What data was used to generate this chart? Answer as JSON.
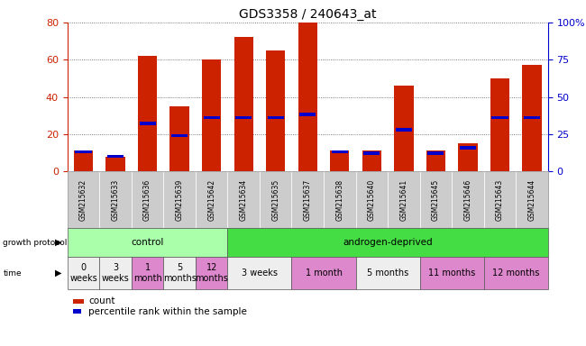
{
  "title": "GDS3358 / 240643_at",
  "samples": [
    "GSM215632",
    "GSM215633",
    "GSM215636",
    "GSM215639",
    "GSM215642",
    "GSM215634",
    "GSM215635",
    "GSM215637",
    "GSM215638",
    "GSM215640",
    "GSM215641",
    "GSM215645",
    "GSM215646",
    "GSM215643",
    "GSM215644"
  ],
  "count_values": [
    11,
    8,
    62,
    35,
    60,
    72,
    65,
    80,
    11,
    11,
    46,
    11,
    15,
    50,
    57
  ],
  "percentile_values": [
    13,
    10,
    32,
    24,
    36,
    36,
    36,
    38,
    13,
    12,
    28,
    12,
    16,
    36,
    36
  ],
  "left_ylim": [
    0,
    80
  ],
  "right_ylim": [
    0,
    100
  ],
  "left_yticks": [
    0,
    20,
    40,
    60,
    80
  ],
  "right_yticks": [
    0,
    25,
    50,
    75,
    100
  ],
  "right_yticklabels": [
    "0",
    "25",
    "50",
    "75",
    "100%"
  ],
  "bar_color": "#CC2200",
  "percentile_color": "#0000CC",
  "title_color": "#333333",
  "left_tick_color": "#CC2200",
  "right_tick_color": "#0000CC",
  "grid_color": "#555555",
  "sample_label_bg": "#CCCCCC",
  "protocol_groups": [
    {
      "label": "control",
      "start": 0,
      "end": 5,
      "color": "#AAFFAA"
    },
    {
      "label": "androgen-deprived",
      "start": 5,
      "end": 15,
      "color": "#44DD44"
    }
  ],
  "time_groups": [
    {
      "label": "0\nweeks",
      "start": 0,
      "end": 1,
      "color": "#EEEEEE"
    },
    {
      "label": "3\nweeks",
      "start": 1,
      "end": 2,
      "color": "#EEEEEE"
    },
    {
      "label": "1\nmonth",
      "start": 2,
      "end": 3,
      "color": "#DD88CC"
    },
    {
      "label": "5\nmonths",
      "start": 3,
      "end": 4,
      "color": "#EEEEEE"
    },
    {
      "label": "12\nmonths",
      "start": 4,
      "end": 5,
      "color": "#DD88CC"
    },
    {
      "label": "3 weeks",
      "start": 5,
      "end": 7,
      "color": "#EEEEEE"
    },
    {
      "label": "1 month",
      "start": 7,
      "end": 9,
      "color": "#DD88CC"
    },
    {
      "label": "5 months",
      "start": 9,
      "end": 11,
      "color": "#EEEEEE"
    },
    {
      "label": "11 months",
      "start": 11,
      "end": 13,
      "color": "#DD88CC"
    },
    {
      "label": "12 months",
      "start": 13,
      "end": 15,
      "color": "#DD88CC"
    }
  ],
  "legend_count_label": "count",
  "legend_percentile_label": "percentile rank within the sample",
  "bar_width": 0.6
}
